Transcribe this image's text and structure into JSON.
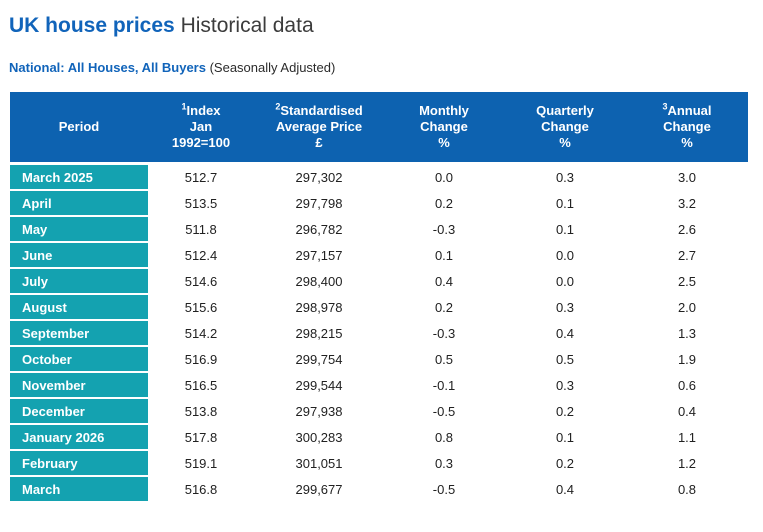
{
  "page": {
    "title_primary": "UK house prices",
    "title_secondary": "Historical data",
    "subtitle_primary": "National: All Houses, All Buyers",
    "subtitle_secondary": "(Seasonally Adjusted)"
  },
  "colors": {
    "header_blue": "#0d62b0",
    "period_teal": "#14a2b0",
    "title_blue": "#1164ba",
    "body_text": "#212121"
  },
  "table": {
    "columns": [
      {
        "key": "period",
        "sup": "",
        "lines": [
          "Period"
        ]
      },
      {
        "key": "index",
        "sup": "1",
        "lines": [
          "Index",
          "Jan",
          "1992=100"
        ]
      },
      {
        "key": "price",
        "sup": "2",
        "lines": [
          "Standardised",
          "Average Price",
          "£"
        ]
      },
      {
        "key": "monthly",
        "sup": "",
        "lines": [
          "Monthly",
          "Change",
          "%"
        ]
      },
      {
        "key": "quarterly",
        "sup": "",
        "lines": [
          "Quarterly",
          "Change",
          "%"
        ]
      },
      {
        "key": "annual",
        "sup": "3",
        "lines": [
          "Annual",
          "Change",
          "%"
        ]
      }
    ],
    "rows": [
      {
        "period": "March 2025",
        "index": "512.7",
        "price": "297,302",
        "monthly": "0.0",
        "quarterly": "0.3",
        "annual": "3.0"
      },
      {
        "period": "April",
        "index": "513.5",
        "price": "297,798",
        "monthly": "0.2",
        "quarterly": "0.1",
        "annual": "3.2"
      },
      {
        "period": "May",
        "index": "511.8",
        "price": "296,782",
        "monthly": "-0.3",
        "quarterly": "0.1",
        "annual": "2.6"
      },
      {
        "period": "June",
        "index": "512.4",
        "price": "297,157",
        "monthly": "0.1",
        "quarterly": "0.0",
        "annual": "2.7"
      },
      {
        "period": "July",
        "index": "514.6",
        "price": "298,400",
        "monthly": "0.4",
        "quarterly": "0.0",
        "annual": "2.5"
      },
      {
        "period": "August",
        "index": "515.6",
        "price": "298,978",
        "monthly": "0.2",
        "quarterly": "0.3",
        "annual": "2.0"
      },
      {
        "period": "September",
        "index": "514.2",
        "price": "298,215",
        "monthly": "-0.3",
        "quarterly": "0.4",
        "annual": "1.3"
      },
      {
        "period": "October",
        "index": "516.9",
        "price": "299,754",
        "monthly": "0.5",
        "quarterly": "0.5",
        "annual": "1.9"
      },
      {
        "period": "November",
        "index": "516.5",
        "price": "299,544",
        "monthly": "-0.1",
        "quarterly": "0.3",
        "annual": "0.6"
      },
      {
        "period": "December",
        "index": "513.8",
        "price": "297,938",
        "monthly": "-0.5",
        "quarterly": "0.2",
        "annual": "0.4"
      },
      {
        "period": "January 2026",
        "index": "517.8",
        "price": "300,283",
        "monthly": "0.8",
        "quarterly": "0.1",
        "annual": "1.1"
      },
      {
        "period": "February",
        "index": "519.1",
        "price": "301,051",
        "monthly": "0.3",
        "quarterly": "0.2",
        "annual": "1.2"
      },
      {
        "period": "March",
        "index": "516.8",
        "price": "299,677",
        "monthly": "-0.5",
        "quarterly": "0.4",
        "annual": "0.8"
      }
    ]
  }
}
